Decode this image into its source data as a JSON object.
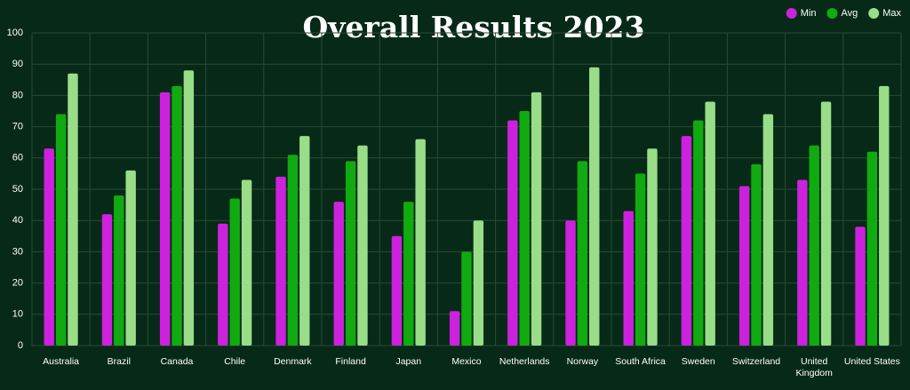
{
  "chart_data": {
    "type": "bar",
    "title": "Overall Results 2023",
    "categories": [
      "Australia",
      "Brazil",
      "Canada",
      "Chile",
      "Denmark",
      "Finland",
      "Japan",
      "Mexico",
      "Netherlands",
      "Norway",
      "South Africa",
      "Sweden",
      "Switzerland",
      "United Kingdom",
      "United States"
    ],
    "series": [
      {
        "name": "Min",
        "color": "#cc22dd",
        "values": [
          63,
          42,
          81,
          39,
          54,
          46,
          35,
          11,
          72,
          40,
          43,
          67,
          51,
          53,
          38
        ]
      },
      {
        "name": "Avg",
        "color": "#11aa11",
        "values": [
          74,
          48,
          83,
          47,
          61,
          59,
          46,
          30,
          75,
          59,
          55,
          72,
          58,
          64,
          62
        ]
      },
      {
        "name": "Max",
        "color": "#99dd88",
        "values": [
          87,
          56,
          88,
          53,
          67,
          64,
          66,
          40,
          81,
          89,
          63,
          78,
          74,
          78,
          83
        ]
      }
    ],
    "ylim": [
      0,
      100
    ],
    "yticks": [
      0,
      10,
      20,
      30,
      40,
      50,
      60,
      70,
      80,
      90,
      100
    ],
    "grid": true,
    "legend": "top-right"
  }
}
